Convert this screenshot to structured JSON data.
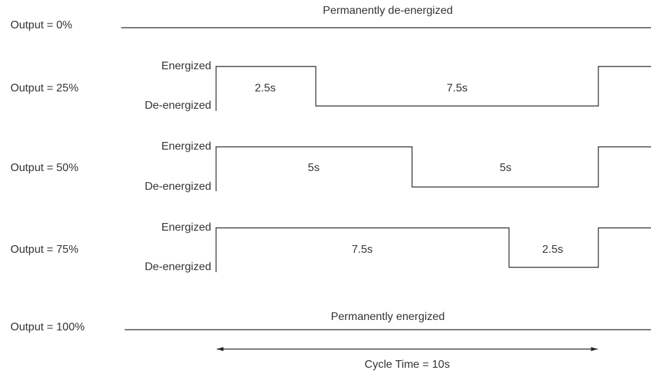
{
  "rows": [
    {
      "label": "Output = 0%",
      "note": "Permanently de-energized"
    },
    {
      "label": "Output = 25%",
      "high": "Energized",
      "low": "De-energized",
      "on_time": "2.5s",
      "off_time": "7.5s"
    },
    {
      "label": "Output = 50%",
      "high": "Energized",
      "low": "De-energized",
      "on_time": "5s",
      "off_time": "5s"
    },
    {
      "label": "Output = 75%",
      "high": "Energized",
      "low": "De-energized",
      "on_time": "7.5s",
      "off_time": "2.5s"
    },
    {
      "label": "Output = 100%",
      "note": "Permanently energized"
    }
  ],
  "cycle": "Cycle Time = 10s"
}
